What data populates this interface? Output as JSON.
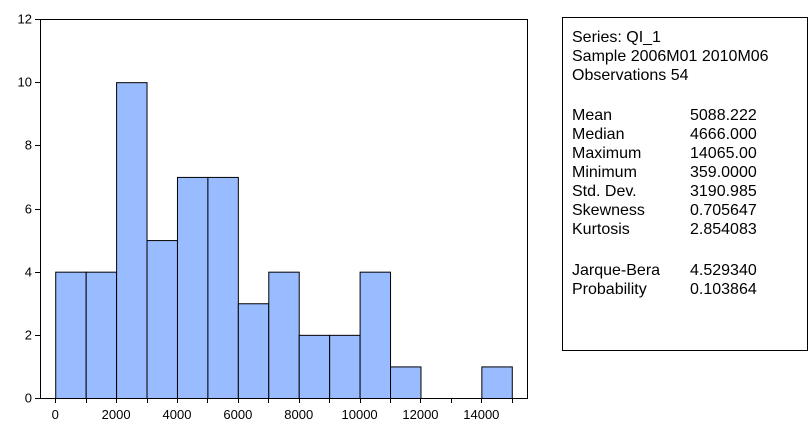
{
  "chart_data": {
    "type": "bar",
    "subtype": "histogram",
    "bins": [
      {
        "from": 0,
        "to": 1000,
        "count": 4
      },
      {
        "from": 1000,
        "to": 2000,
        "count": 4
      },
      {
        "from": 2000,
        "to": 3000,
        "count": 10
      },
      {
        "from": 3000,
        "to": 4000,
        "count": 5
      },
      {
        "from": 4000,
        "to": 5000,
        "count": 7
      },
      {
        "from": 5000,
        "to": 6000,
        "count": 7
      },
      {
        "from": 6000,
        "to": 7000,
        "count": 3
      },
      {
        "from": 7000,
        "to": 8000,
        "count": 4
      },
      {
        "from": 8000,
        "to": 9000,
        "count": 2
      },
      {
        "from": 9000,
        "to": 10000,
        "count": 2
      },
      {
        "from": 10000,
        "to": 11000,
        "count": 4
      },
      {
        "from": 11000,
        "to": 12000,
        "count": 1
      },
      {
        "from": 12000,
        "to": 13000,
        "count": 0
      },
      {
        "from": 13000,
        "to": 14000,
        "count": 0
      },
      {
        "from": 14000,
        "to": 15000,
        "count": 1
      }
    ],
    "xlim": [
      -500,
      15500
    ],
    "ylim": [
      0,
      12
    ],
    "xticks": [
      0,
      2000,
      4000,
      6000,
      8000,
      10000,
      12000,
      14000
    ],
    "xtick_labels": [
      "0",
      "2000",
      "4000",
      "6000",
      "8000",
      "10000",
      "12000",
      "14000"
    ],
    "yticks": [
      0,
      2,
      4,
      6,
      8,
      10,
      12
    ],
    "ytick_labels": [
      "0",
      "2",
      "4",
      "6",
      "8",
      "10",
      "12"
    ],
    "bar_color": "#99BBFF",
    "grid": false,
    "title": "",
    "xlabel": "",
    "ylabel": ""
  },
  "stats": {
    "header": {
      "series": "Series: QI_1",
      "sample": "Sample 2006M01 2010M06",
      "observations": "Observations 54"
    },
    "rows": [
      {
        "label": "Mean",
        "value": "5088.222"
      },
      {
        "label": "Median",
        "value": "4666.000"
      },
      {
        "label": "Maximum",
        "value": "14065.00"
      },
      {
        "label": "Minimum",
        "value": "359.0000"
      },
      {
        "label": "Std. Dev.",
        "value": "3190.985"
      },
      {
        "label": "Skewness",
        "value": "0.705647"
      },
      {
        "label": "Kurtosis",
        "value": "2.854083"
      }
    ],
    "tests": [
      {
        "label": "Jarque-Bera",
        "value": "4.529340"
      },
      {
        "label": "Probability",
        "value": "0.103864"
      }
    ]
  }
}
